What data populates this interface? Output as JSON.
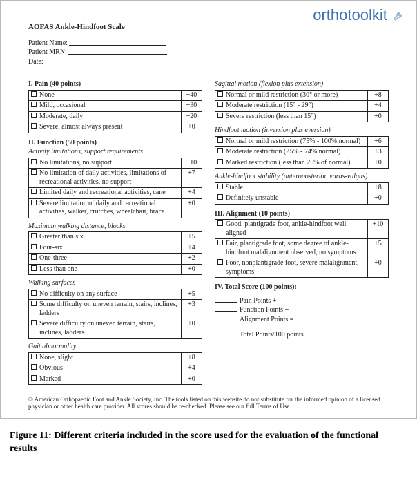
{
  "logo_text": "orthotoolkit",
  "title": "AOFAS Ankle-Hindfoot Scale",
  "patient_fields": {
    "name_label": "Patient Name:",
    "mrn_label": "Patient MRN:",
    "date_label": "Date:"
  },
  "left": {
    "pain": {
      "heading": "I. Pain (40 points)",
      "rows": [
        {
          "label": "None",
          "pts": "+40"
        },
        {
          "label": "Mild, occasional",
          "pts": "+30"
        },
        {
          "label": "Moderate, daily",
          "pts": "+20"
        },
        {
          "label": "Severe, almost always present",
          "pts": "+0"
        }
      ]
    },
    "function_heading": "II. Function (50 points)",
    "activity": {
      "subtitle": "Activity limitations, support requirements",
      "rows": [
        {
          "label": "No limitations, no support",
          "pts": "+10"
        },
        {
          "label": "No limitation of daily activities, limitations of recreational activities, no support",
          "pts": "+7"
        },
        {
          "label": "Limited daily and recreational activities, cane",
          "pts": "+4"
        },
        {
          "label": "Severe limitation of daily and recreational activities, walker, crutches, wheelchair, brace",
          "pts": "+0"
        }
      ]
    },
    "walkdist": {
      "subtitle": "Maximum walking distance, blocks",
      "rows": [
        {
          "label": "Greater than six",
          "pts": "+5"
        },
        {
          "label": "Four-six",
          "pts": "+4"
        },
        {
          "label": "One-three",
          "pts": "+2"
        },
        {
          "label": "Less than one",
          "pts": "+0"
        }
      ]
    },
    "surfaces": {
      "subtitle": "Walking surfaces",
      "rows": [
        {
          "label": "No difficulty on any surface",
          "pts": "+5"
        },
        {
          "label": "Some difficulty on uneven terrain, stairs, inclines, ladders",
          "pts": "+3"
        },
        {
          "label": "Severe difficulty on uneven terrain, stairs, inclines, ladders",
          "pts": "+0"
        }
      ]
    },
    "gait": {
      "subtitle": "Gait abnormality",
      "rows": [
        {
          "label": "None, slight",
          "pts": "+8"
        },
        {
          "label": "Obvious",
          "pts": "+4"
        },
        {
          "label": "Marked",
          "pts": "+0"
        }
      ]
    }
  },
  "right": {
    "sagittal": {
      "subtitle": "Sagittal motion (flexion plus extension)",
      "rows": [
        {
          "label": "Normal or mild restriction (30° or more)",
          "pts": "+8"
        },
        {
          "label": "Moderate restriction (15° - 29°)",
          "pts": "+4"
        },
        {
          "label": "Severe restriction (less than 15°)",
          "pts": "+0"
        }
      ]
    },
    "hindfoot": {
      "subtitle": "Hindfoot motion (inversion plus eversion)",
      "rows": [
        {
          "label": "Normal or mild restriction (75% - 100% normal)",
          "pts": "+6"
        },
        {
          "label": "Moderate restriction (25% - 74% normal)",
          "pts": "+3"
        },
        {
          "label": "Marked restriction (less than 25% of normal)",
          "pts": "+0"
        }
      ]
    },
    "stability": {
      "subtitle": "Ankle-hindfoot stability (anteroposterior, varus-valgus)",
      "rows": [
        {
          "label": "Stable",
          "pts": "+8"
        },
        {
          "label": "Definitely unstable",
          "pts": "+0"
        }
      ]
    },
    "alignment": {
      "heading": "III. Alignment (10 points)",
      "rows": [
        {
          "label": "Good, plantigrade foot, ankle-hindfoot well aligned",
          "pts": "+10"
        },
        {
          "label": "Fair, plantigrade foot, some degree of ankle-hindfoot malalignment observed, no symptoms",
          "pts": "+5"
        },
        {
          "label": "Poor, nonplantigrade foot, severe malalignment, symptoms",
          "pts": "+0"
        }
      ]
    },
    "totals": {
      "heading": "IV. Total Score (100 points):",
      "lines": [
        "Pain Points +",
        "Function Points +",
        "Alignment Points ="
      ],
      "final": "Total Points/100 points"
    }
  },
  "footer": "© American Orthopaedic Foot and Ankle Society, Inc. The tools listed on this website do not substitute for the informed opinion of a licensed physician or other health care provider. All scores should be re-checked. Please see our full Terms of Use.",
  "caption_strong": "Figure 11: Different criteria included in the score used for the evaluation of the functional results",
  "colors": {
    "logo": "#3f73b1",
    "text": "#222222",
    "border": "#b8b8b8"
  }
}
